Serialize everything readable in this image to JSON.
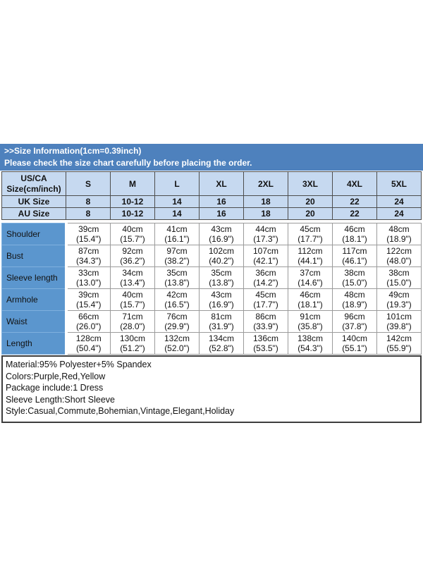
{
  "page": {
    "background": "#ffffff"
  },
  "title_bar": {
    "line1": ">>Size Information(1cm=0.39inch)",
    "line2": "Please check the size chart carefully before placing the order.",
    "bg_color": "#4e81bd"
  },
  "size_table": {
    "header": {
      "corner_line1": "US/CA",
      "corner_line2": "Size(cm/inch)",
      "us_ca_sizes": [
        "S",
        "M",
        "L",
        "XL",
        "2XL",
        "3XL",
        "4XL",
        "5XL"
      ],
      "uk_label": "UK Size",
      "uk_sizes": [
        "8",
        "10-12",
        "14",
        "16",
        "18",
        "20",
        "22",
        "24"
      ],
      "au_label": "AU Size",
      "au_sizes": [
        "8",
        "10-12",
        "14",
        "16",
        "18",
        "20",
        "22",
        "24"
      ]
    },
    "measurements": [
      {
        "label": "Shoulder",
        "cm": [
          "39cm",
          "40cm",
          "41cm",
          "43cm",
          "44cm",
          "45cm",
          "46cm",
          "48cm"
        ],
        "inch": [
          "(15.4\")",
          "(15.7\")",
          "(16.1\")",
          "(16.9\")",
          "(17.3\")",
          "(17.7\")",
          "(18.1\")",
          "(18.9\")"
        ]
      },
      {
        "label": "Bust",
        "cm": [
          "87cm",
          "92cm",
          "97cm",
          "102cm",
          "107cm",
          "112cm",
          "117cm",
          "122cm"
        ],
        "inch": [
          "(34.3\")",
          "(36.2\")",
          "(38.2\")",
          "(40.2\")",
          "(42.1\")",
          "(44.1\")",
          "(46.1\")",
          "(48.0\")"
        ]
      },
      {
        "label": "Sleeve length",
        "cm": [
          "33cm",
          "34cm",
          "35cm",
          "35cm",
          "36cm",
          "37cm",
          "38cm",
          "38cm"
        ],
        "inch": [
          "(13.0\")",
          "(13.4\")",
          "(13.8\")",
          "(13.8\")",
          "(14.2\")",
          "(14.6\")",
          "(15.0\")",
          "(15.0\")"
        ]
      },
      {
        "label": "Armhole",
        "cm": [
          "39cm",
          "40cm",
          "42cm",
          "43cm",
          "45cm",
          "46cm",
          "48cm",
          "49cm"
        ],
        "inch": [
          "(15.4\")",
          "(15.7\")",
          "(16.5\")",
          "(16.9\")",
          "(17.7\")",
          "(18.1\")",
          "(18.9\")",
          "(19.3\")"
        ]
      },
      {
        "label": "Waist",
        "cm": [
          "66cm",
          "71cm",
          "76cm",
          "81cm",
          "86cm",
          "91cm",
          "96cm",
          "101cm"
        ],
        "inch": [
          "(26.0\")",
          "(28.0\")",
          "(29.9\")",
          "(31.9\")",
          "(33.9\")",
          "(35.8\")",
          "(37.8\")",
          "(39.8\")"
        ]
      },
      {
        "label": "Length",
        "cm": [
          "128cm",
          "130cm",
          "132cm",
          "134cm",
          "136cm",
          "138cm",
          "140cm",
          "142cm"
        ],
        "inch": [
          "(50.4\")",
          "(51.2\")",
          "(52.0\")",
          "(52.8\")",
          "(53.5\")",
          "(54.3\")",
          "(55.1\")",
          "(55.9\")"
        ]
      }
    ],
    "colors": {
      "header_cell_bg": "#c6d9f0",
      "label_cell_bg": "#5b96ce",
      "header_border": "#4d4d4d",
      "grid_border": "#9b9b9b"
    }
  },
  "notes": {
    "lines": [
      "Material:95% Polyester+5% Spandex",
      "Colors:Purple,Red,Yellow",
      "Package include:1 Dress",
      "Sleeve Length:Short Sleeve",
      "Style:Casual,Commute,Bohemian,Vintage,Elegant,Holiday"
    ]
  }
}
